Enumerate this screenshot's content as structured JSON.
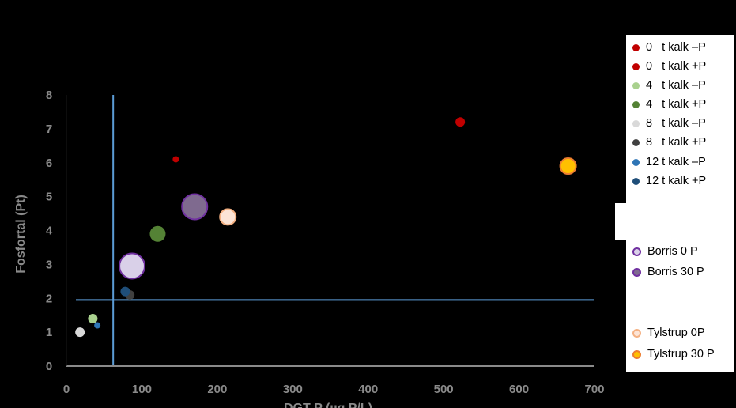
{
  "chart_data": {
    "type": "scatter",
    "xlabel": "DGT P (µg P/L)",
    "ylabel": "Fosfortal (Pt)",
    "xlim": [
      0,
      700
    ],
    "ylim": [
      0,
      8
    ],
    "x_ticks": [
      "0",
      "100",
      "200",
      "300",
      "400",
      "500",
      "600",
      "700"
    ],
    "y_ticks": [
      "0",
      "1",
      "2",
      "3",
      "4",
      "5",
      "6",
      "7",
      "8"
    ],
    "reference_lines": {
      "x": 62,
      "y": 1.95
    },
    "series": [
      {
        "name": "0   t kalk –P",
        "color": "#c00000",
        "points": [
          {
            "x": 145,
            "y": 6.1,
            "size": 1
          }
        ]
      },
      {
        "name": "0   t kalk +P",
        "color": "#c00000",
        "points": [
          {
            "x": 522,
            "y": 7.2,
            "size": 2
          }
        ]
      },
      {
        "name": "4   t kalk –P",
        "color": "#a9d18e",
        "points": [
          {
            "x": 35,
            "y": 1.4,
            "size": 2
          }
        ]
      },
      {
        "name": "4   t kalk +P",
        "color": "#548235",
        "points": [
          {
            "x": 121,
            "y": 3.9,
            "size": 3
          }
        ]
      },
      {
        "name": "8   t kalk –P",
        "color": "#d9d9d9",
        "points": [
          {
            "x": 18,
            "y": 1.0,
            "size": 2
          }
        ]
      },
      {
        "name": "8   t kalk +P",
        "color": "#404040",
        "points": [
          {
            "x": 84,
            "y": 2.1,
            "size": 2
          }
        ]
      },
      {
        "name": "12 t kalk –P",
        "color": "#2e75b6",
        "points": [
          {
            "x": 41,
            "y": 1.2,
            "size": 1
          }
        ]
      },
      {
        "name": "12 t kalk +P",
        "color": "#1f4e79",
        "points": [
          {
            "x": 78,
            "y": 2.2,
            "size": 2
          }
        ]
      },
      {
        "name": "Borris 0 P",
        "color": "#d9d0e8",
        "edge": "#7030a0",
        "points": [
          {
            "x": 87,
            "y": 2.95,
            "size": 5
          }
        ]
      },
      {
        "name": "Borris 30 P",
        "color": "#7f6a8f",
        "edge": "#7030a0",
        "points": [
          {
            "x": 170,
            "y": 4.7,
            "size": 5
          }
        ]
      },
      {
        "name": "Tylstrup 0P",
        "color": "#fce4d6",
        "edge": "#f4b183",
        "points": [
          {
            "x": 214,
            "y": 4.4,
            "size": 3
          }
        ]
      },
      {
        "name": "Tylstrup 30 P",
        "color": "#ffc000",
        "edge": "#ed7d31",
        "points": [
          {
            "x": 665,
            "y": 5.9,
            "size": 3
          }
        ]
      }
    ]
  }
}
